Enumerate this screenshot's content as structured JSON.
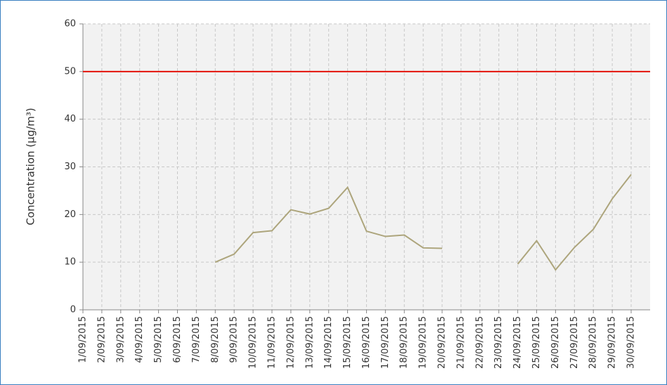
{
  "chart_data": {
    "type": "line",
    "y_label": "Concentration (μg/m³)",
    "categories": [
      "1/09/2015",
      "2/09/2015",
      "3/09/2015",
      "4/09/2015",
      "5/09/2015",
      "6/09/2015",
      "7/09/2015",
      "8/09/2015",
      "9/09/2015",
      "10/09/2015",
      "11/09/2015",
      "12/09/2015",
      "13/09/2015",
      "14/09/2015",
      "15/09/2015",
      "16/09/2015",
      "17/09/2015",
      "18/09/2015",
      "19/09/2015",
      "20/09/2015",
      "21/09/2015",
      "22/09/2015",
      "23/09/2015",
      "24/09/2015",
      "25/09/2015",
      "26/09/2015",
      "27/09/2015",
      "28/09/2015",
      "29/09/2015",
      "30/09/2015"
    ],
    "series": [
      {
        "color": "#ada57c",
        "values": [
          null,
          null,
          null,
          null,
          null,
          null,
          null,
          10.0,
          11.7,
          16.2,
          16.6,
          21.0,
          20.1,
          21.3,
          25.7,
          16.5,
          15.4,
          15.7,
          13.0,
          12.9,
          null,
          null,
          null,
          9.6,
          14.5,
          8.4,
          13.1,
          16.9,
          23.3,
          28.4
        ]
      }
    ],
    "reference_line": {
      "value": 50,
      "color": "#e3120b"
    },
    "ylim": [
      0,
      60
    ],
    "yticks": [
      0,
      10,
      20,
      30,
      40,
      50,
      60
    ],
    "grid": true
  }
}
